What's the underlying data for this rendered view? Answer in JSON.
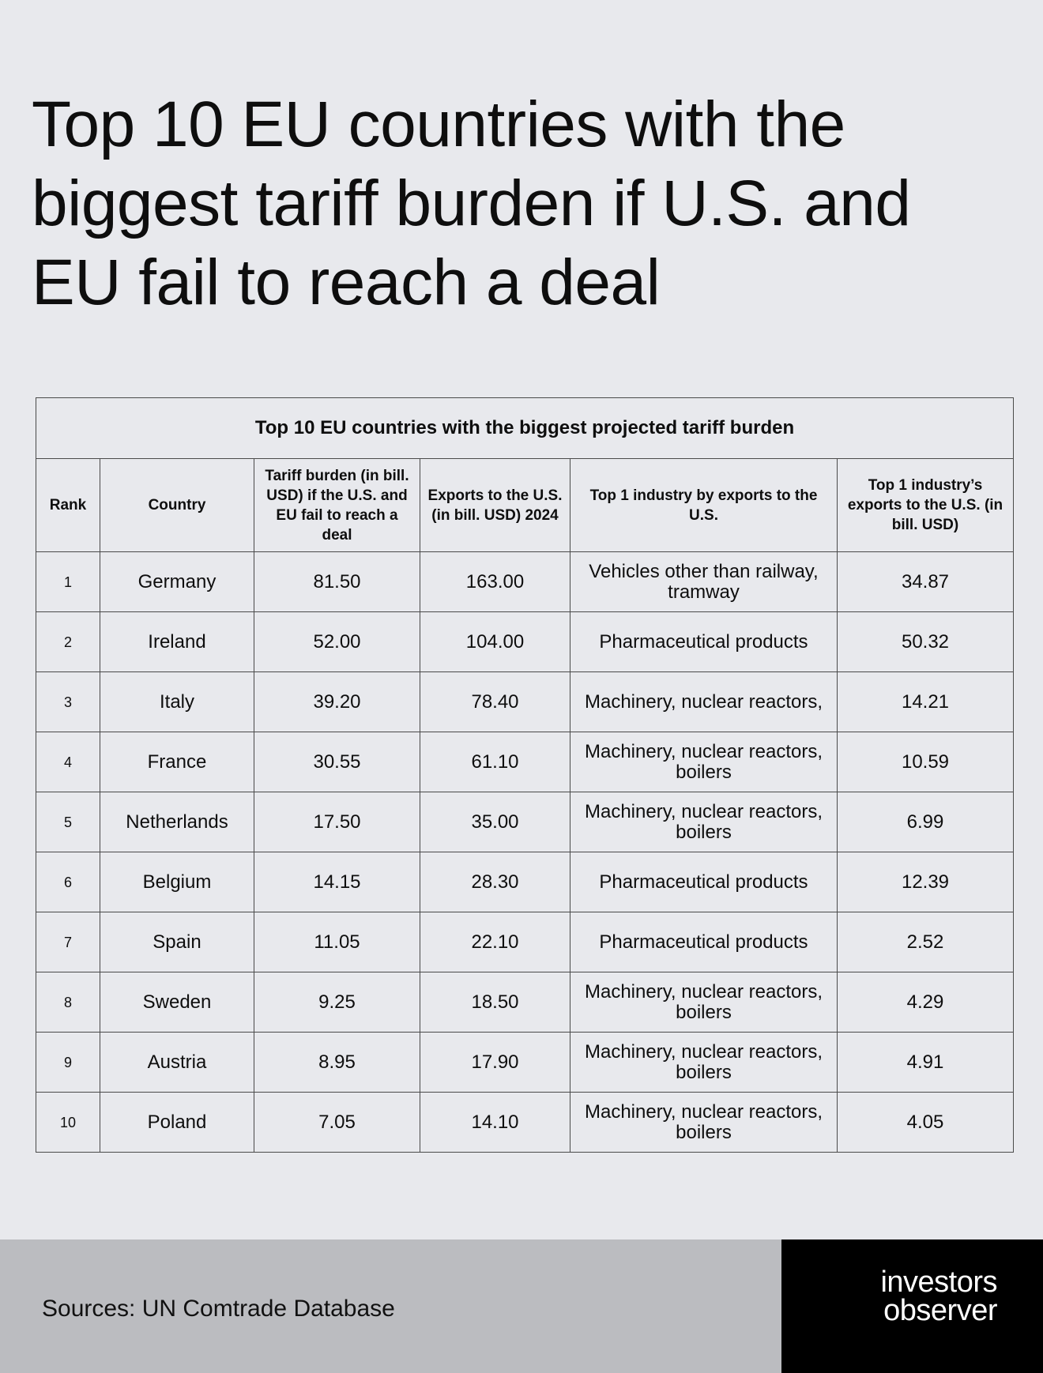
{
  "headline": "Top 10 EU countries with the biggest tariff burden if U.S. and EU fail to reach a deal",
  "chart_data": {
    "type": "table",
    "title": "Top 10 EU countries with the biggest projected tariff burden",
    "columns": [
      "Rank",
      "Country",
      "Tariff burden (in bill. USD) if the U.S. and EU fail to reach a deal",
      "Exports to the U.S. (in bill. USD) 2024",
      "Top 1 industry by exports to the U.S.",
      "Top 1 industry’s exports to the U.S. (in bill. USD)"
    ],
    "rows": [
      [
        "1",
        "Germany",
        "81.50",
        "163.00",
        "Vehicles other than railway, tramway",
        "34.87"
      ],
      [
        "2",
        "Ireland",
        "52.00",
        "104.00",
        "Pharmaceutical products",
        "50.32"
      ],
      [
        "3",
        "Italy",
        "39.20",
        "78.40",
        "Machinery, nuclear reactors,",
        "14.21"
      ],
      [
        "4",
        "France",
        "30.55",
        "61.10",
        "Machinery, nuclear reactors, boilers",
        "10.59"
      ],
      [
        "5",
        "Netherlands",
        "17.50",
        "35.00",
        "Machinery, nuclear reactors, boilers",
        "6.99"
      ],
      [
        "6",
        "Belgium",
        "14.15",
        "28.30",
        "Pharmaceutical products",
        "12.39"
      ],
      [
        "7",
        "Spain",
        "11.05",
        "22.10",
        "Pharmaceutical products",
        "2.52"
      ],
      [
        "8",
        "Sweden",
        "9.25",
        "18.50",
        "Machinery, nuclear reactors, boilers",
        "4.29"
      ],
      [
        "9",
        "Austria",
        "8.95",
        "17.90",
        "Machinery, nuclear reactors, boilers",
        "4.91"
      ],
      [
        "10",
        "Poland",
        "7.05",
        "14.10",
        "Machinery, nuclear reactors, boilers",
        "4.05"
      ]
    ]
  },
  "footer": {
    "sources": "Sources: UN Comtrade Database",
    "logo_line1": "investors",
    "logo_line2": "observer"
  }
}
